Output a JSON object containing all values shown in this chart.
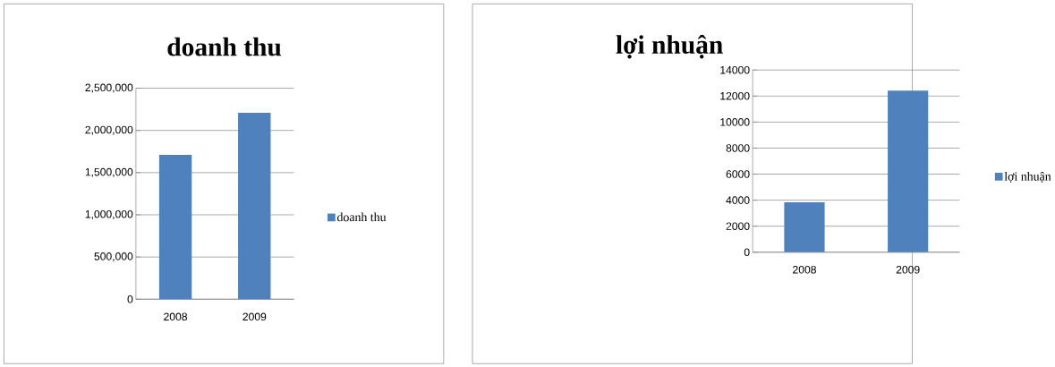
{
  "chart_data": [
    {
      "type": "bar",
      "title": "doanh thu",
      "categories": [
        "2008",
        "2009"
      ],
      "series": [
        {
          "name": "doanh thu",
          "color": "#4f81bd",
          "values": [
            1710000,
            2210000
          ]
        }
      ],
      "ylim": [
        0,
        2500000
      ],
      "yticks": [
        {
          "value": 0,
          "label": "0"
        },
        {
          "value": 500000,
          "label": "500,000"
        },
        {
          "value": 1000000,
          "label": "1,000,000"
        },
        {
          "value": 1500000,
          "label": "1,500,000"
        },
        {
          "value": 2000000,
          "label": "2,000,000"
        },
        {
          "value": 2500000,
          "label": "2,500,000"
        }
      ],
      "grid": "y",
      "legend": "right"
    },
    {
      "type": "bar",
      "title": "lợi nhuận",
      "categories": [
        "2008",
        "2009"
      ],
      "series": [
        {
          "name": "lợi nhuận",
          "color": "#4f81bd",
          "values": [
            3840,
            12420
          ]
        }
      ],
      "ylim": [
        0,
        14000
      ],
      "yticks": [
        0,
        2000,
        4000,
        6000,
        8000,
        10000,
        12000,
        14000
      ],
      "grid": "y",
      "legend": "right"
    }
  ]
}
